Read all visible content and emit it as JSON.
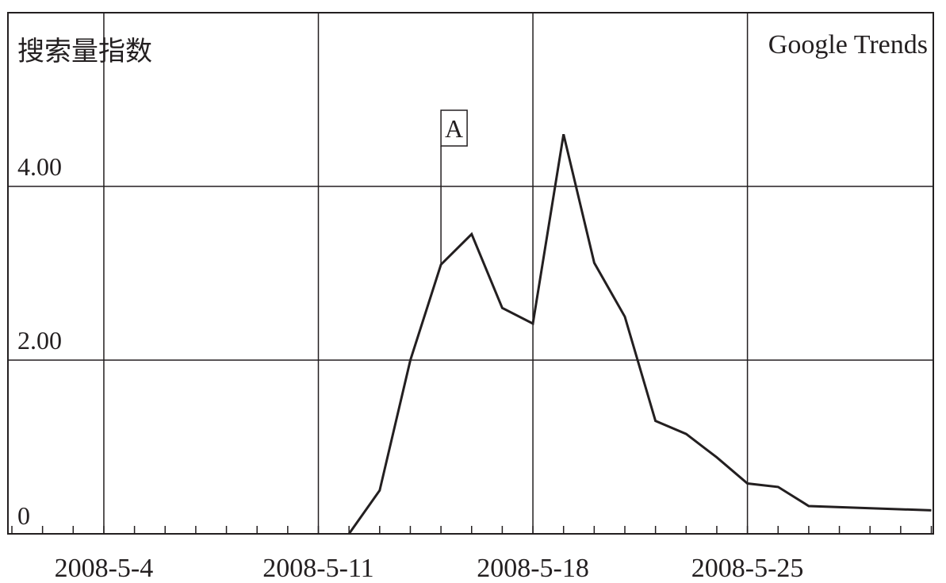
{
  "chart_data": {
    "type": "line",
    "title": "",
    "ylabel": "搜索量指数",
    "xlabel": "",
    "source_label": "Google Trends",
    "x_start": "2008-5-1",
    "x_end": "2008-5-31",
    "ylim": [
      0,
      4.8
    ],
    "y_ticks": [
      {
        "value": 0,
        "label": "0"
      },
      {
        "value": 2,
        "label": "2.00"
      },
      {
        "value": 4,
        "label": "4.00"
      }
    ],
    "x_major_labels": [
      "2008-5-4",
      "2008-5-11",
      "2008-5-18",
      "2008-5-25"
    ],
    "grid": true,
    "series": [
      {
        "points": [
          {
            "x": "2008-5-12",
            "y": 0.0
          },
          {
            "x": "2008-5-13",
            "y": 0.5
          },
          {
            "x": "2008-5-14",
            "y": 2.0
          },
          {
            "x": "2008-5-15",
            "y": 3.1
          },
          {
            "x": "2008-5-16",
            "y": 3.45
          },
          {
            "x": "2008-5-17",
            "y": 2.6
          },
          {
            "x": "2008-5-18",
            "y": 2.42
          },
          {
            "x": "2008-5-19",
            "y": 4.6
          },
          {
            "x": "2008-5-20",
            "y": 3.12
          },
          {
            "x": "2008-5-21",
            "y": 2.5
          },
          {
            "x": "2008-5-22",
            "y": 1.3
          },
          {
            "x": "2008-5-23",
            "y": 1.15
          },
          {
            "x": "2008-5-24",
            "y": 0.88
          },
          {
            "x": "2008-5-25",
            "y": 0.58
          },
          {
            "x": "2008-5-26",
            "y": 0.54
          },
          {
            "x": "2008-5-27",
            "y": 0.32
          },
          {
            "x": "2008-5-31",
            "y": 0.27
          }
        ]
      }
    ],
    "annotations": [
      {
        "label": "A",
        "x": "2008-5-15",
        "y": 3.1
      }
    ]
  }
}
